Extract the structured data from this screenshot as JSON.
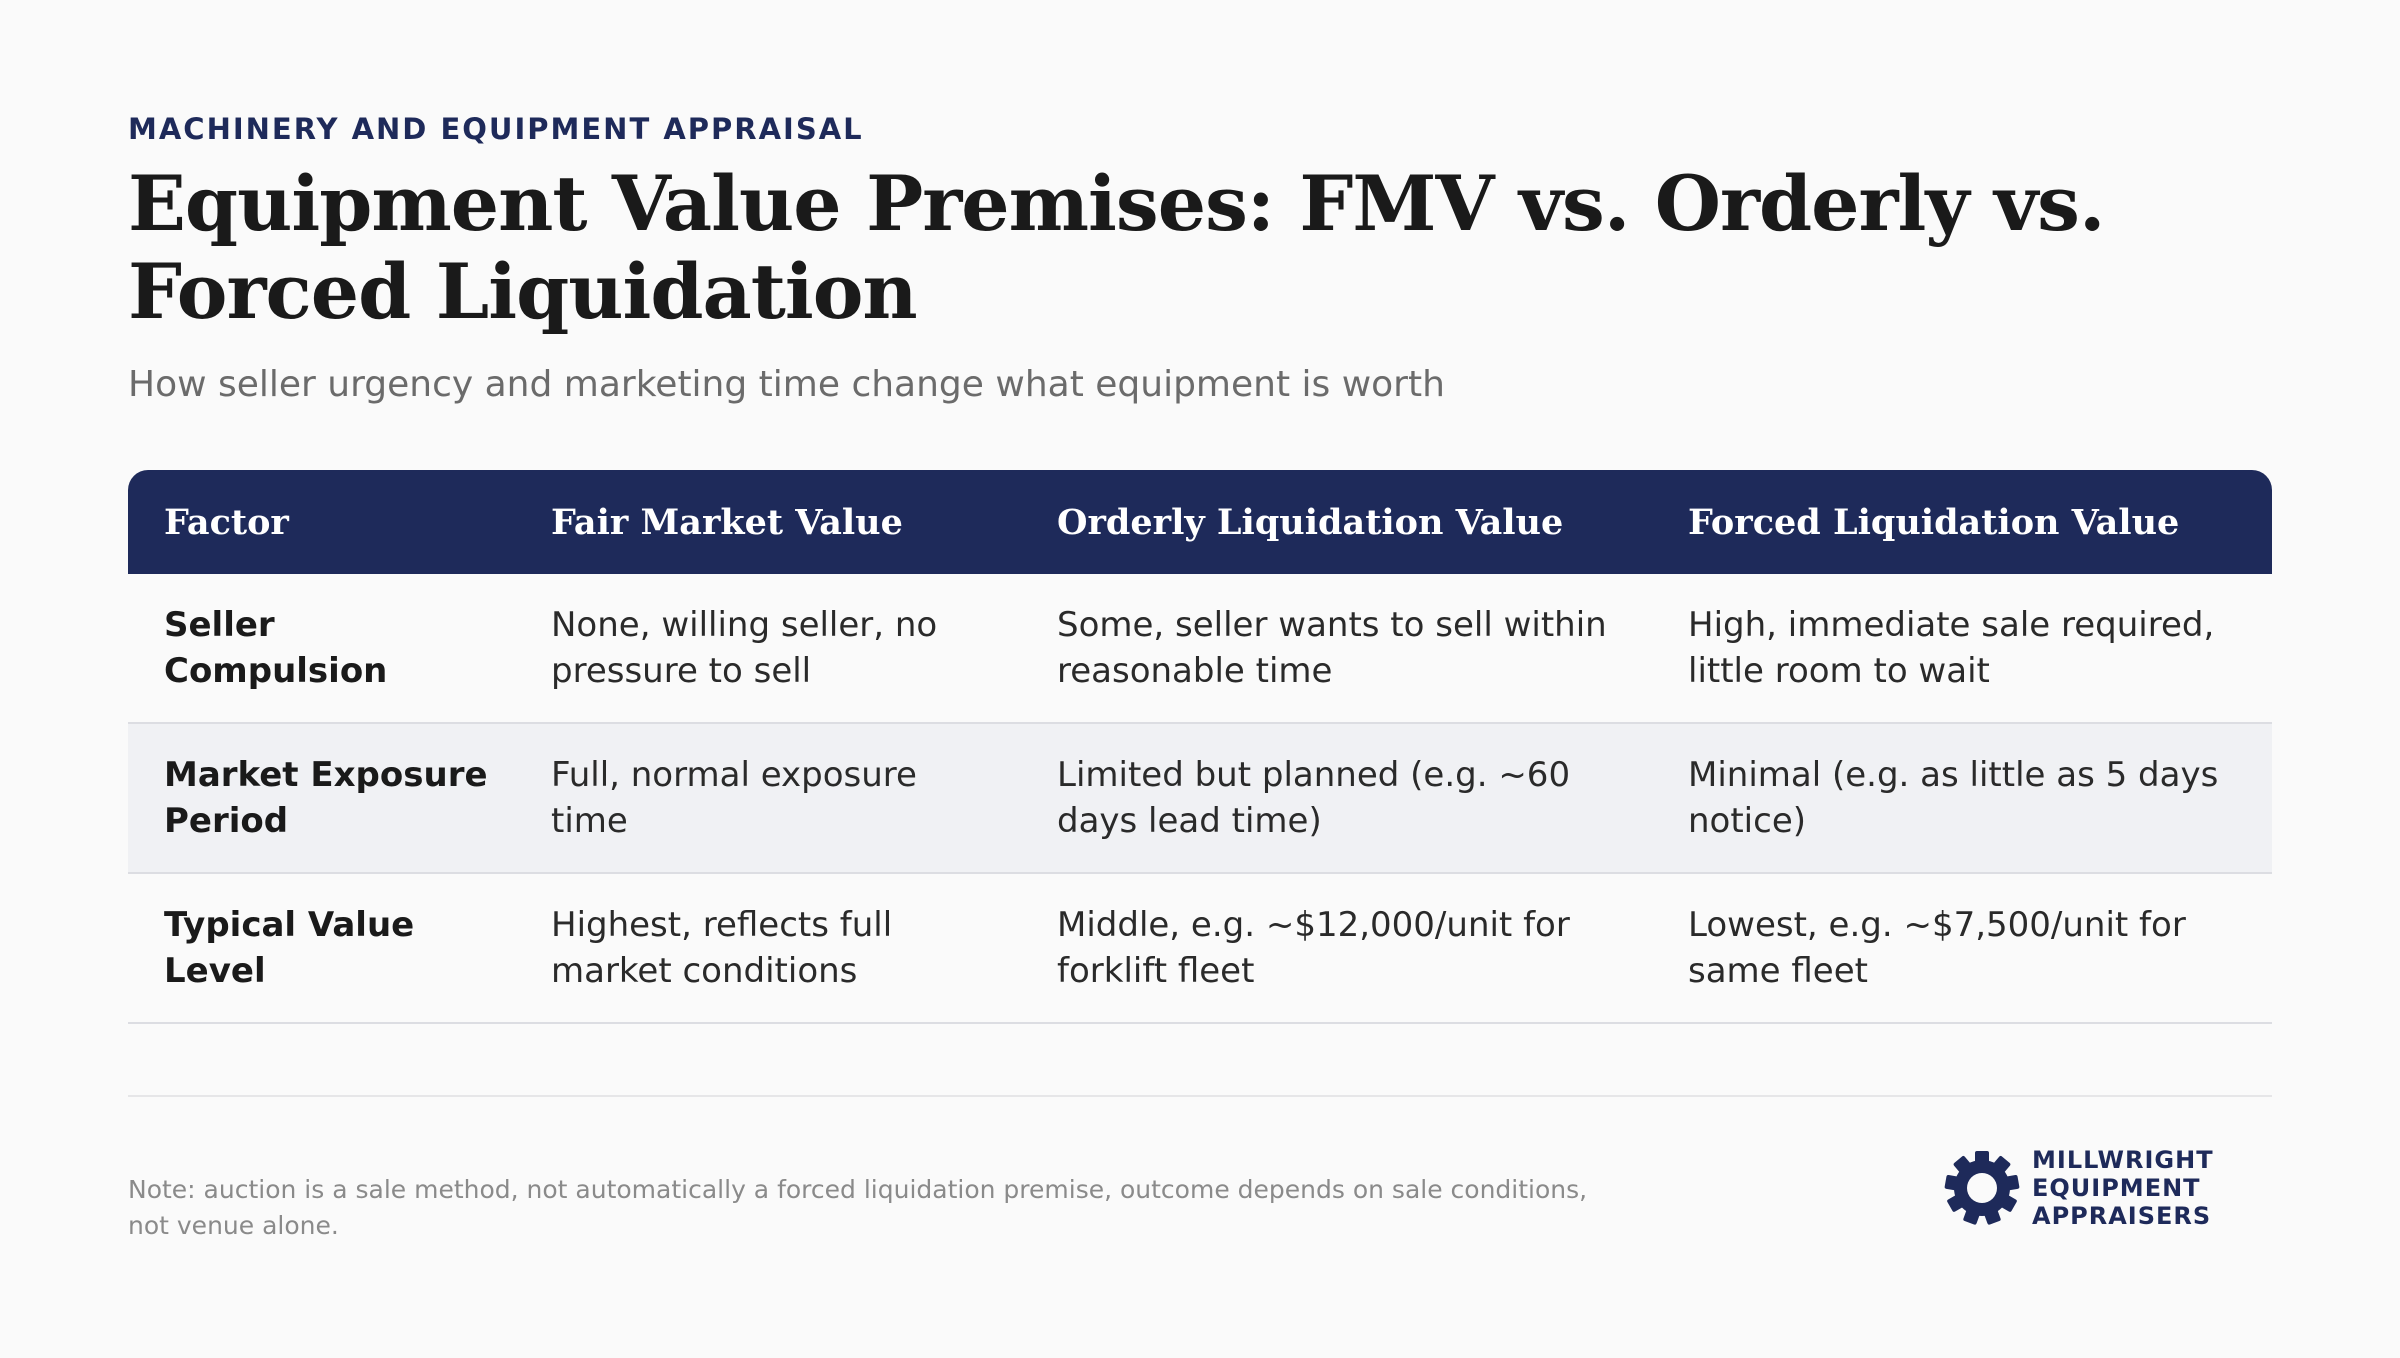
{
  "header": {
    "eyebrow": "MACHINERY AND EQUIPMENT APPRAISAL",
    "title": "Equipment Value Premises: FMV vs. Orderly vs. Forced Liquidation",
    "subtitle": "How seller urgency and marketing time change what equipment is worth"
  },
  "table": {
    "columns": [
      "Factor",
      "Fair Market Value",
      "Orderly Liquidation Value",
      "Forced Liquidation Value"
    ],
    "rows": [
      {
        "factor": "Seller Compulsion",
        "fmv": "None, willing seller, no pressure to sell",
        "olv": "Some, seller wants to sell within reasonable time",
        "flv": "High, immediate sale required, little room to wait"
      },
      {
        "factor": "Market Exposure Period",
        "fmv": "Full, normal exposure time",
        "olv": "Limited but planned (e.g. ~60 days lead time)",
        "flv": "Minimal (e.g. as little as 5 days notice)"
      },
      {
        "factor": "Typical Value Level",
        "fmv": "Highest, reflects full market conditions",
        "olv": "Middle, e.g. ~$12,000/unit for forklift fleet",
        "flv": "Lowest, e.g. ~$7,500/unit for same fleet"
      }
    ]
  },
  "footer": {
    "note": "Note: auction is a sale method, not automatically a forced liquidation premise, outcome depends on sale conditions, not venue alone."
  },
  "logo": {
    "icon": "gear-icon",
    "lines": [
      "MILLWRIGHT",
      "EQUIPMENT",
      "APPRAISERS"
    ]
  },
  "colors": {
    "brand_navy": "#1e2a5a",
    "background": "#fafafa",
    "row_alt": "#f0f1f4"
  }
}
